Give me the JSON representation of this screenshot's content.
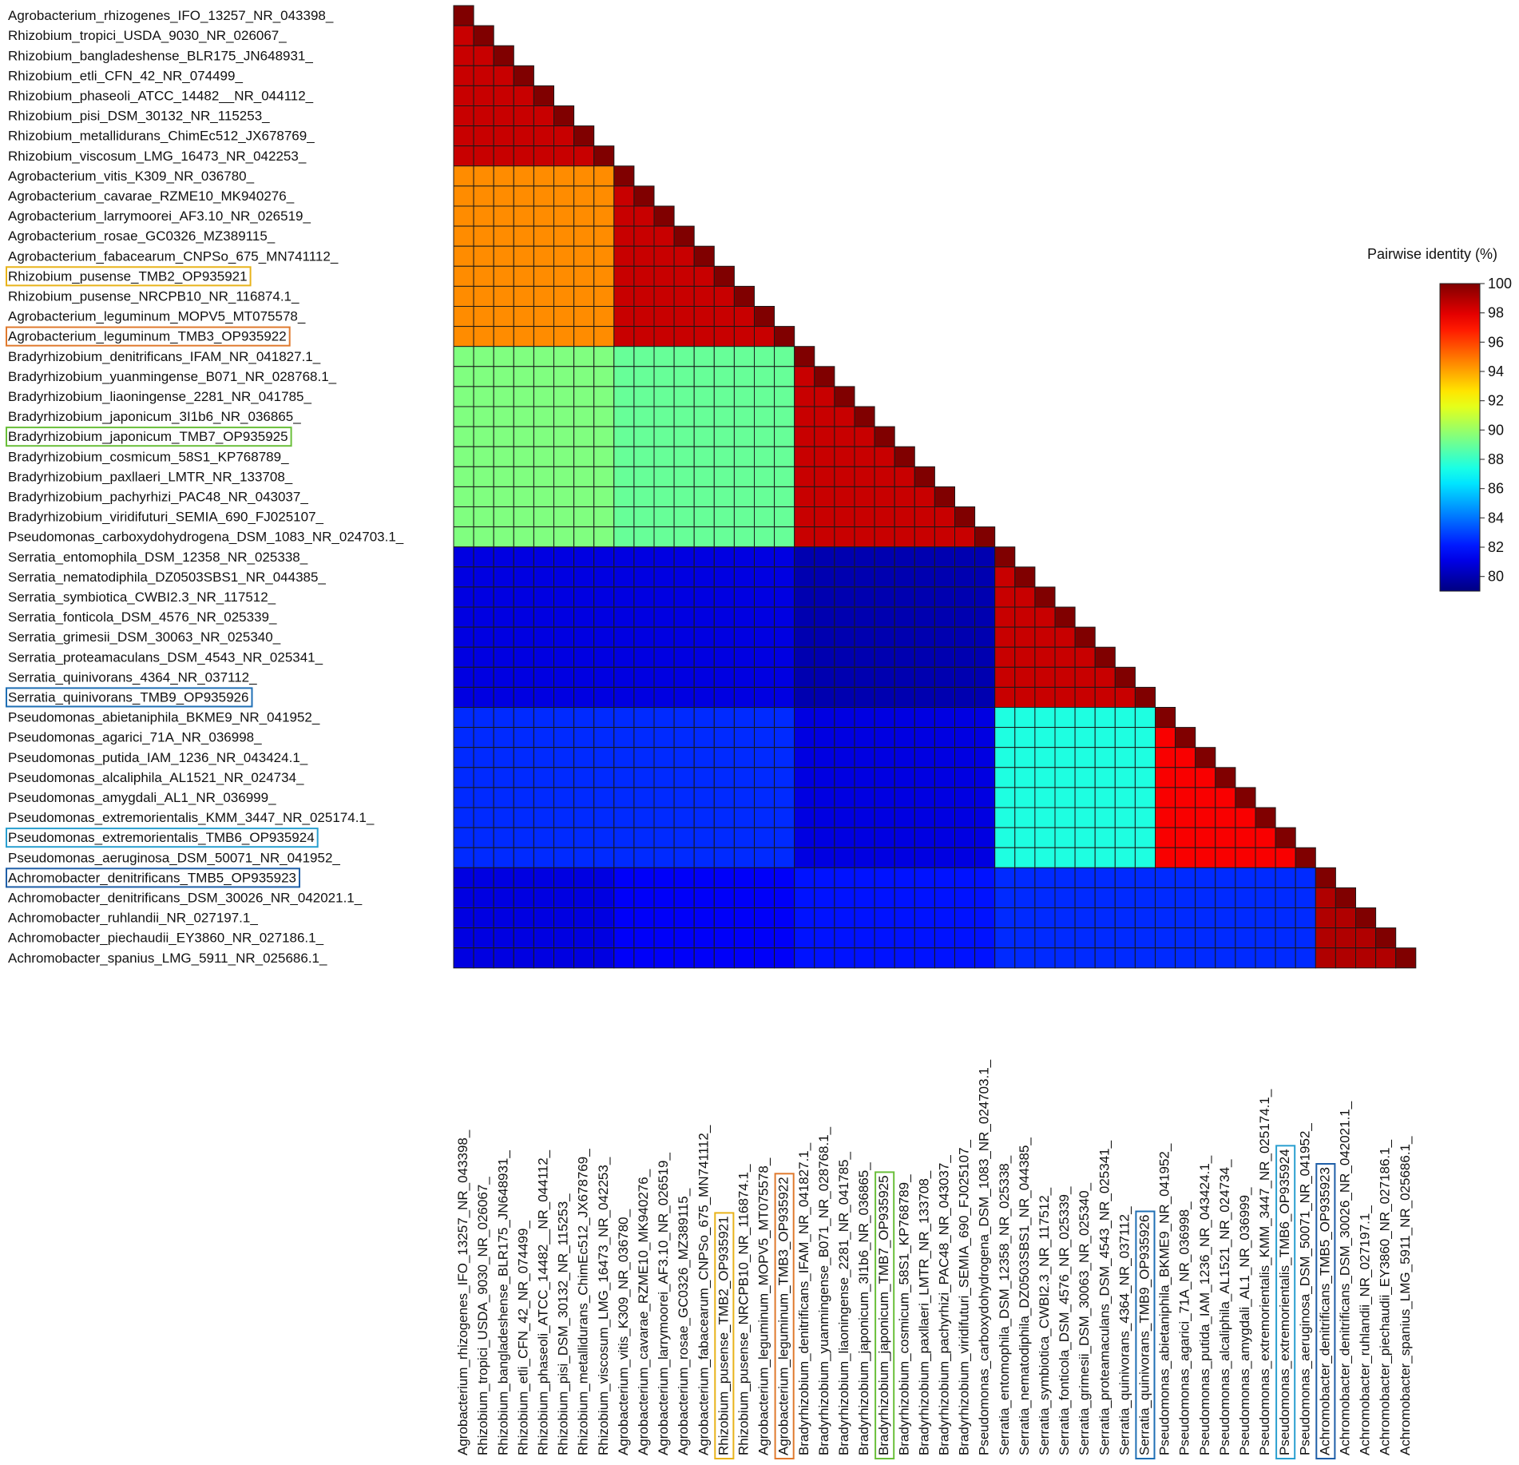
{
  "chart_data": {
    "type": "heatmap",
    "shape": "lower-triangle",
    "colorbar": {
      "title": "Pairwise identity (%)",
      "range": [
        79,
        100
      ],
      "ticks": [
        100,
        98,
        96,
        94,
        92,
        90,
        88,
        86,
        84,
        82,
        80
      ],
      "colormap": "jet"
    },
    "labels": [
      "Agrobacterium_rhizogenes_IFO_13257_NR_043398_",
      "Rhizobium_tropici_USDA_9030_NR_026067_",
      "Rhizobium_bangladeshense_BLR175_JN648931_",
      "Rhizobium_etli_CFN_42_NR_074499_",
      "Rhizobium_phaseoli_ATCC_14482__NR_044112_",
      "Rhizobium_pisi_DSM_30132_NR_115253_",
      "Rhizobium_metallidurans_ChimEc512_JX678769_",
      "Rhizobium_viscosum_LMG_16473_NR_042253_",
      "Agrobacterium_vitis_K309_NR_036780_",
      "Agrobacterium_cavarae_RZME10_MK940276_",
      "Agrobacterium_larrymoorei_AF3.10_NR_026519_",
      "Agrobacterium_rosae_GC0326_MZ389115_",
      "Agrobacterium_fabacearum_CNPSo_675_MN741112_",
      "Rhizobium_pusense_TMB2_OP935921",
      "Rhizobium_pusense_NRCPB10_NR_116874.1_",
      "Agrobacterium_leguminum_MOPV5_MT075578_",
      "Agrobacterium_leguminum_TMB3_OP935922",
      "Bradyrhizobium_denitrificans_IFAM_NR_041827.1_",
      "Bradyrhizobium_yuanmingense_B071_NR_028768.1_",
      "Bradyrhizobium_liaoningense_2281_NR_041785_",
      "Bradyrhizobium_japonicum_3I1b6_NR_036865_",
      "Bradyrhizobium_japonicum_TMB7_OP935925",
      "Bradyrhizobium_cosmicum_58S1_KP768789_",
      "Bradyrhizobium_paxllaeri_LMTR_NR_133708_",
      "Bradyrhizobium_pachyrhizi_PAC48_NR_043037_",
      "Bradyrhizobium_viridifuturi_SEMIA_690_FJ025107_",
      "Pseudomonas_carboxydohydrogena_DSM_1083_NR_024703.1_",
      "Serratia_entomophila_DSM_12358_NR_025338_",
      "Serratia_nematodiphila_DZ0503SBS1_NR_044385_",
      "Serratia_symbiotica_CWBI2.3_NR_117512_",
      "Serratia_fonticola_DSM_4576_NR_025339_",
      "Serratia_grimesii_DSM_30063_NR_025340_",
      "Serratia_proteamaculans_DSM_4543_NR_025341_",
      "Serratia_quinivorans_4364_NR_037112_",
      "Serratia_quinivorans_TMB9_OP935926",
      "Pseudomonas_abietaniphila_BKME9_NR_041952_",
      "Pseudomonas_agarici_71A_NR_036998_",
      "Pseudomonas_putida_IAM_1236_NR_043424.1_",
      "Pseudomonas_alcaliphila_AL1521_NR_024734_",
      "Pseudomonas_amygdali_AL1_NR_036999_",
      "Pseudomonas_extremorientalis_KMM_3447_NR_025174.1_",
      "Pseudomonas_extremorientalis_TMB6_OP935924",
      "Pseudomonas_aeruginosa_DSM_50071_NR_041952_",
      "Achromobacter_denitrificans_TMB5_OP935923",
      "Achromobacter_denitrificans_DSM_30026_NR_042021.1_",
      "Achromobacter_ruhlandii_NR_027197.1_",
      "Achromobacter_piechaudii_EY3860_NR_027186.1_",
      "Achromobacter_spanius_LMG_5911_NR_025686.1_"
    ],
    "highlighted": [
      {
        "index": 13,
        "color": "#e8b31a"
      },
      {
        "index": 16,
        "color": "#e07a2e"
      },
      {
        "index": 21,
        "color": "#6abf3a"
      },
      {
        "index": 34,
        "color": "#1f6fb5"
      },
      {
        "index": 41,
        "color": "#2a9fd0"
      },
      {
        "index": 43,
        "color": "#1f5fa8"
      }
    ],
    "groups": [
      {
        "start": 0,
        "end": 7
      },
      {
        "start": 8,
        "end": 16
      },
      {
        "start": 17,
        "end": 26
      },
      {
        "start": 27,
        "end": 34
      },
      {
        "start": 35,
        "end": 42
      },
      {
        "start": 43,
        "end": 47
      }
    ],
    "group_identity": [
      [
        98.5
      ],
      [
        94.5,
        98.5
      ],
      [
        89.5,
        89.0,
        98.5
      ],
      [
        81.0,
        81.0,
        80.0,
        98.5
      ],
      [
        82.5,
        82.5,
        81.0,
        87.5,
        97.5
      ],
      [
        81.0,
        81.5,
        82.0,
        82.5,
        82.5,
        99.0
      ]
    ],
    "diagonal_value": 100
  }
}
